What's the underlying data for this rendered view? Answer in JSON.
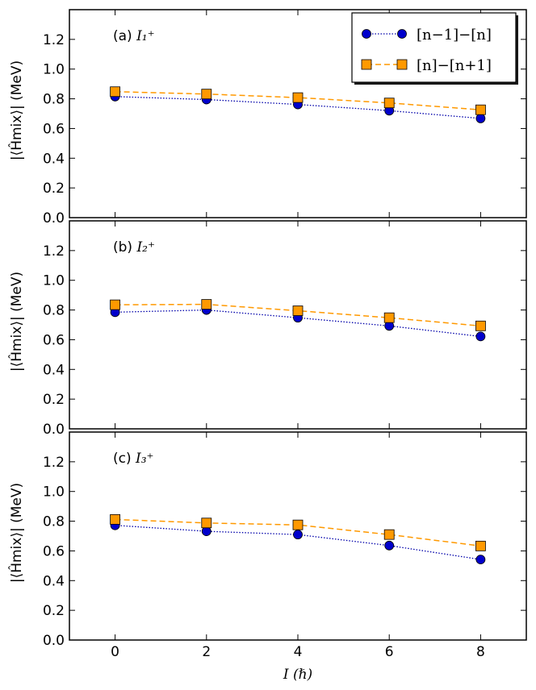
{
  "chart_data": [
    {
      "type": "line",
      "panel_label": "(a) ",
      "panel_math": "I₁⁺",
      "xlabel": "",
      "ylabel": "|⟨Ĥmix⟩| (MeV)",
      "xlim": [
        -1,
        9
      ],
      "ylim": [
        0.0,
        1.4
      ],
      "x": [
        0,
        2,
        4,
        6,
        8
      ],
      "xticks": [
        "0",
        "2",
        "4",
        "6",
        "8"
      ],
      "yticks": [
        "0.0",
        "0.2",
        "0.4",
        "0.6",
        "0.8",
        "1.0",
        "1.2"
      ],
      "series": [
        {
          "name": "[n−1]−[n]",
          "values": [
            0.815,
            0.795,
            0.762,
            0.72,
            0.668
          ]
        },
        {
          "name": "[n]−[n+1]",
          "values": [
            0.848,
            0.832,
            0.808,
            0.772,
            0.726
          ]
        }
      ]
    },
    {
      "type": "line",
      "panel_label": "(b) ",
      "panel_math": "I₂⁺",
      "xlabel": "",
      "ylabel": "|⟨Ĥmix⟩| (MeV)",
      "xlim": [
        -1,
        9
      ],
      "ylim": [
        0.0,
        1.4
      ],
      "x": [
        0,
        2,
        4,
        6,
        8
      ],
      "xticks": [
        "0",
        "2",
        "4",
        "6",
        "8"
      ],
      "yticks": [
        "0.0",
        "0.2",
        "0.4",
        "0.6",
        "0.8",
        "1.0",
        "1.2"
      ],
      "series": [
        {
          "name": "[n−1]−[n]",
          "values": [
            0.785,
            0.8,
            0.748,
            0.693,
            0.622
          ]
        },
        {
          "name": "[n]−[n+1]",
          "values": [
            0.835,
            0.838,
            0.795,
            0.748,
            0.693
          ]
        }
      ]
    },
    {
      "type": "line",
      "panel_label": "(c) ",
      "panel_math": "I₃⁺",
      "xlabel": "I (ℏ)",
      "ylabel": "|⟨Ĥmix⟩| (MeV)",
      "xlim": [
        -1,
        9
      ],
      "ylim": [
        0.0,
        1.4
      ],
      "x": [
        0,
        2,
        4,
        6,
        8
      ],
      "xticks": [
        "0",
        "2",
        "4",
        "6",
        "8"
      ],
      "yticks": [
        "0.0",
        "0.2",
        "0.4",
        "0.6",
        "0.8",
        "1.0",
        "1.2"
      ],
      "series": [
        {
          "name": "[n−1]−[n]",
          "values": [
            0.772,
            0.732,
            0.71,
            0.636,
            0.542
          ]
        },
        {
          "name": "[n]−[n+1]",
          "values": [
            0.812,
            0.788,
            0.775,
            0.71,
            0.633
          ]
        }
      ]
    }
  ],
  "legend": {
    "items": [
      {
        "label": "[n−1]−[n]",
        "marker": "circle"
      },
      {
        "label": "[n]−[n+1]",
        "marker": "square"
      }
    ]
  },
  "colors": {
    "series1_fill": "#0000cc",
    "series1_line": "#0000aa",
    "series2_fill": "#ff9900",
    "series2_line": "#ff9900",
    "axis": "#000000",
    "background": "#ffffff"
  }
}
